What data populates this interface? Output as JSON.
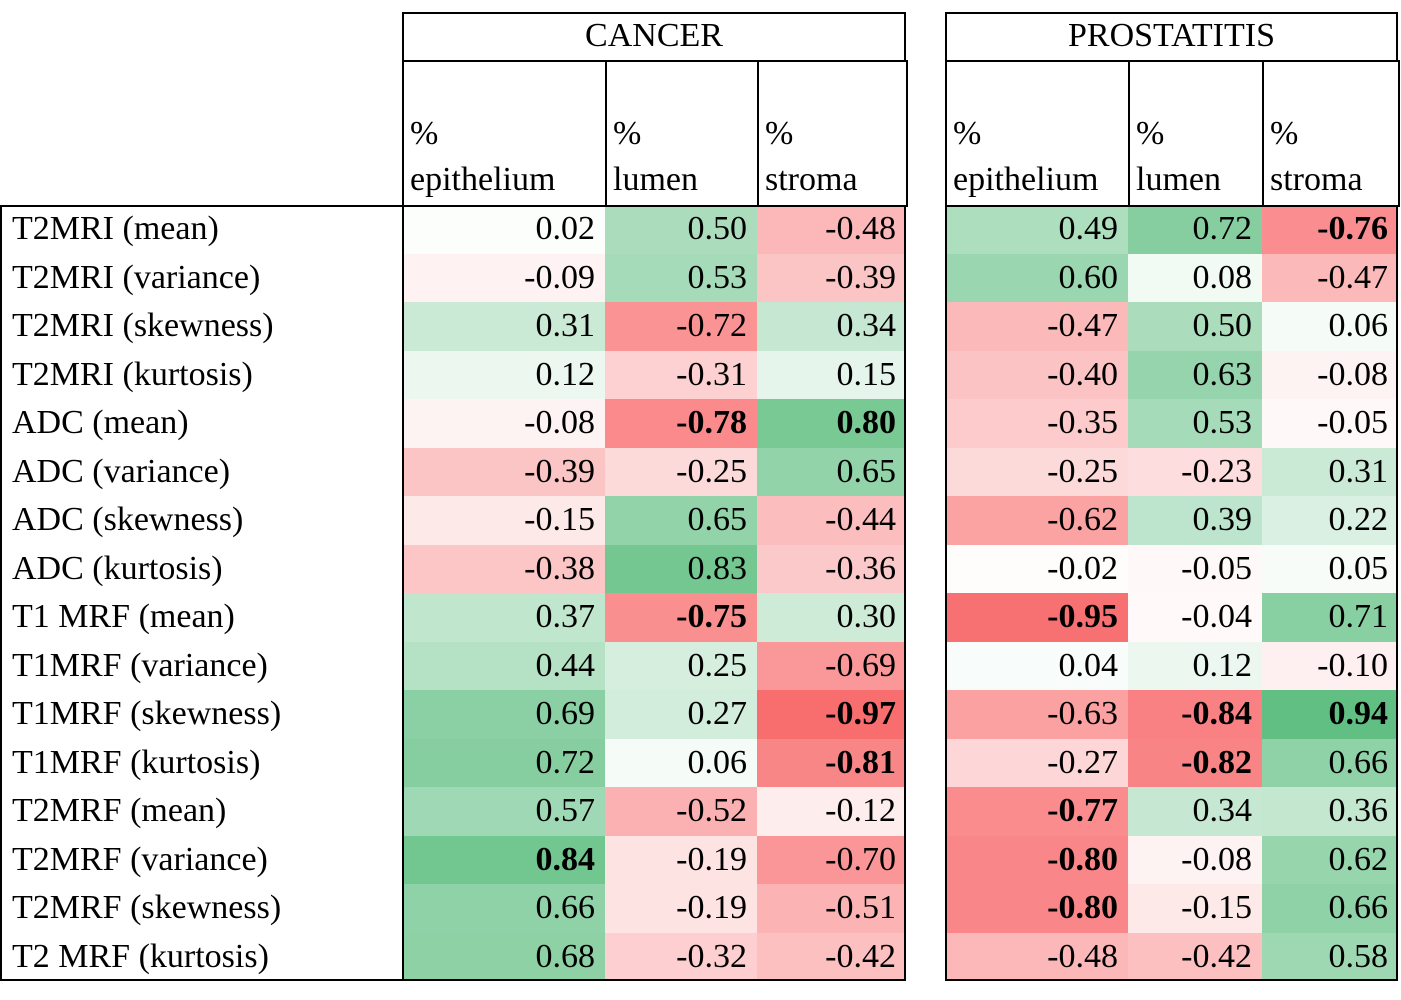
{
  "table": {
    "groups": [
      {
        "title": "CANCER",
        "columns": [
          "%\nepithelium",
          "%\nlumen",
          "%\nstroma"
        ]
      },
      {
        "title": "PROSTATITIS",
        "columns": [
          "%\nepithelium",
          "%\nlumen",
          "%\nstroma"
        ]
      }
    ],
    "rows": [
      {
        "label": "T2MRI (mean)",
        "cells": [
          {
            "text": "0.02"
          },
          {
            "text": "0.50"
          },
          {
            "text": "-0.48"
          },
          {
            "text": "0.49"
          },
          {
            "text": "0.72"
          },
          {
            "text": "-0.76",
            "bold": true
          }
        ]
      },
      {
        "label": "T2MRI (variance)",
        "cells": [
          {
            "text": "-0.09"
          },
          {
            "text": "0.53"
          },
          {
            "text": "-0.39"
          },
          {
            "text": "0.60"
          },
          {
            "text": "0.08"
          },
          {
            "text": "-0.47"
          }
        ]
      },
      {
        "label": "T2MRI (skewness)",
        "cells": [
          {
            "text": "0.31"
          },
          {
            "text": "-0.72"
          },
          {
            "text": "0.34"
          },
          {
            "text": "-0.47"
          },
          {
            "text": "0.50"
          },
          {
            "text": "0.06"
          }
        ]
      },
      {
        "label": "T2MRI (kurtosis)",
        "cells": [
          {
            "text": "0.12"
          },
          {
            "text": "-0.31"
          },
          {
            "text": "0.15"
          },
          {
            "text": "-0.40"
          },
          {
            "text": "0.63"
          },
          {
            "text": "-0.08"
          }
        ]
      },
      {
        "label": "ADC (mean)",
        "cells": [
          {
            "text": "-0.08"
          },
          {
            "text": "-0.78",
            "bold": true
          },
          {
            "text": "0.80",
            "bold": true
          },
          {
            "text": "-0.35"
          },
          {
            "text": "0.53"
          },
          {
            "text": "-0.05"
          }
        ]
      },
      {
        "label": "ADC (variance)",
        "cells": [
          {
            "text": "-0.39"
          },
          {
            "text": "-0.25"
          },
          {
            "text": "0.65"
          },
          {
            "text": "-0.25"
          },
          {
            "text": "-0.23"
          },
          {
            "text": "0.31"
          }
        ]
      },
      {
        "label": "ADC (skewness)",
        "cells": [
          {
            "text": "-0.15"
          },
          {
            "text": "0.65"
          },
          {
            "text": "-0.44"
          },
          {
            "text": "-0.62"
          },
          {
            "text": "0.39"
          },
          {
            "text": "0.22"
          }
        ]
      },
      {
        "label": "ADC (kurtosis)",
        "cells": [
          {
            "text": "-0.38"
          },
          {
            "text": "0.83"
          },
          {
            "text": "-0.36"
          },
          {
            "text": "-0.02"
          },
          {
            "text": "-0.05"
          },
          {
            "text": "0.05"
          }
        ]
      },
      {
        "label": "T1 MRF (mean)",
        "cells": [
          {
            "text": "0.37"
          },
          {
            "text": "-0.75",
            "bold": true
          },
          {
            "text": "0.30"
          },
          {
            "text": "-0.95",
            "bold": true
          },
          {
            "text": "-0.04"
          },
          {
            "text": "0.71"
          }
        ]
      },
      {
        "label": "T1MRF (variance)",
        "cells": [
          {
            "text": "0.44"
          },
          {
            "text": "0.25"
          },
          {
            "text": "-0.69"
          },
          {
            "text": "0.04"
          },
          {
            "text": "0.12"
          },
          {
            "text": "-0.10"
          }
        ]
      },
      {
        "label": "T1MRF (skewness)",
        "cells": [
          {
            "text": "0.69"
          },
          {
            "text": "0.27"
          },
          {
            "text": "-0.97",
            "bold": true
          },
          {
            "text": "-0.63"
          },
          {
            "text": "-0.84",
            "bold": true
          },
          {
            "text": "0.94",
            "bold": true
          }
        ]
      },
      {
        "label": "T1MRF (kurtosis)",
        "cells": [
          {
            "text": "0.72"
          },
          {
            "text": "0.06"
          },
          {
            "text": "-0.81",
            "bold": true
          },
          {
            "text": "-0.27"
          },
          {
            "text": "-0.82",
            "bold": true
          },
          {
            "text": "0.66"
          }
        ]
      },
      {
        "label": "T2MRF (mean)",
        "cells": [
          {
            "text": "0.57"
          },
          {
            "text": "-0.52"
          },
          {
            "text": "-0.12"
          },
          {
            "text": "-0.77",
            "bold": true
          },
          {
            "text": "0.34"
          },
          {
            "text": "0.36"
          }
        ]
      },
      {
        "label": "T2MRF (variance)",
        "cells": [
          {
            "text": "0.84",
            "bold": true
          },
          {
            "text": "-0.19"
          },
          {
            "text": "-0.70"
          },
          {
            "text": "-0.80",
            "bold": true
          },
          {
            "text": "-0.08"
          },
          {
            "text": "0.62"
          }
        ]
      },
      {
        "label": "T2MRF (skewness)",
        "cells": [
          {
            "text": "0.66"
          },
          {
            "text": "-0.19"
          },
          {
            "text": "-0.51"
          },
          {
            "text": "-0.80",
            "bold": true
          },
          {
            "text": "-0.15"
          },
          {
            "text": "0.66"
          }
        ]
      },
      {
        "label": "T2 MRF (kurtosis)",
        "cells": [
          {
            "text": "0.68"
          },
          {
            "text": "-0.32"
          },
          {
            "text": "-0.42"
          },
          {
            "text": "-0.48"
          },
          {
            "text": "-0.42"
          },
          {
            "text": "0.58"
          }
        ]
      }
    ]
  }
}
